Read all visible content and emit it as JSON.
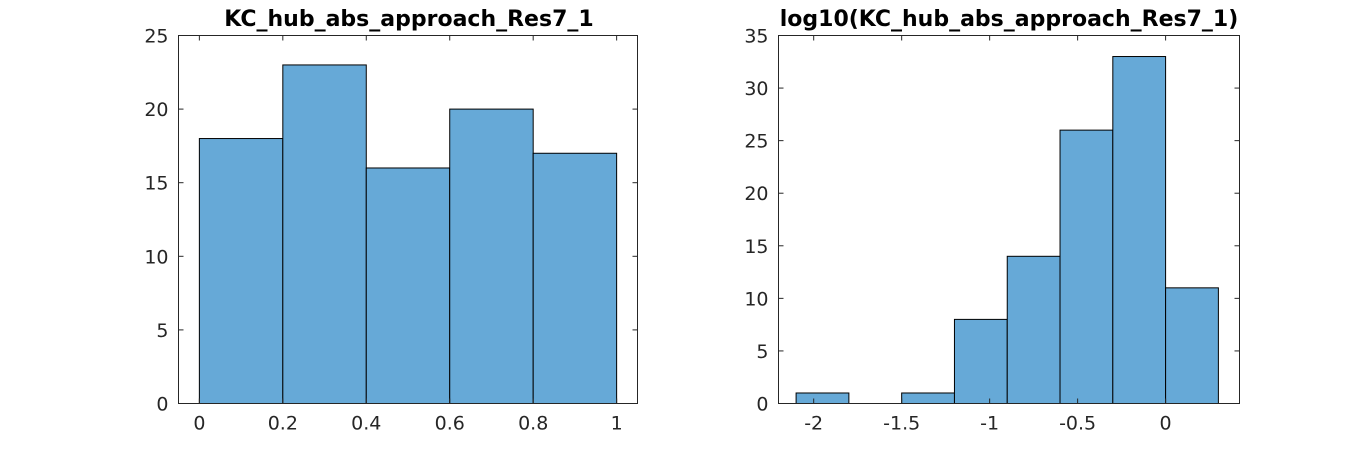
{
  "chart_data": [
    {
      "type": "bar",
      "title": "KC_hub_abs_approach_Res7_1",
      "bar_color": "#66A9D7",
      "xlim": [
        -0.05,
        1.05
      ],
      "ylim": [
        0,
        25
      ],
      "xticks": [
        0,
        0.2,
        0.4,
        0.6,
        0.8,
        1
      ],
      "xtick_labels": [
        "0",
        "0.2",
        "0.4",
        "0.6",
        "0.8",
        "1"
      ],
      "yticks": [
        0,
        5,
        10,
        15,
        20,
        25
      ],
      "ytick_labels": [
        "0",
        "5",
        "10",
        "15",
        "20",
        "25"
      ],
      "bin_edges": [
        0,
        0.2,
        0.4,
        0.6,
        0.8,
        1.0
      ],
      "values": [
        18,
        23,
        16,
        20,
        17
      ]
    },
    {
      "type": "bar",
      "title": "log10(KC_hub_abs_approach_Res7_1)",
      "bar_color": "#66A9D7",
      "xlim": [
        -2.2,
        0.42
      ],
      "ylim": [
        0,
        35
      ],
      "xticks": [
        -2,
        -1.5,
        -1,
        -0.5,
        0
      ],
      "xtick_labels": [
        "-2",
        "-1.5",
        "-1",
        "-0.5",
        "0"
      ],
      "yticks": [
        0,
        5,
        10,
        15,
        20,
        25,
        30,
        35
      ],
      "ytick_labels": [
        "0",
        "5",
        "10",
        "15",
        "20",
        "25",
        "30",
        "35"
      ],
      "bin_edges": [
        -2.1,
        -1.8,
        -1.5,
        -1.2,
        -0.9,
        -0.6,
        -0.3,
        0.0,
        0.3
      ],
      "values": [
        1,
        0,
        1,
        8,
        14,
        26,
        33,
        11
      ]
    }
  ]
}
